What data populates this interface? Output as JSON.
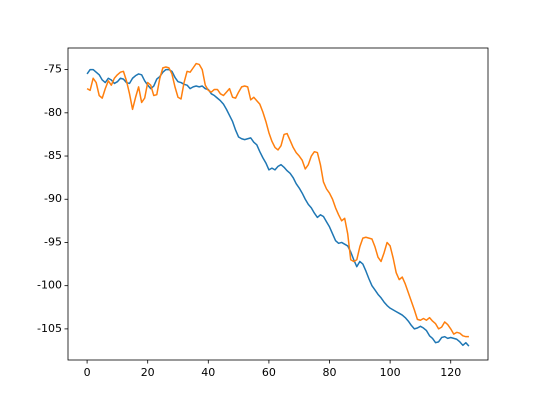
{
  "chart_data": {
    "type": "line",
    "x": [
      0,
      1,
      2,
      3,
      4,
      5,
      6,
      7,
      8,
      9,
      10,
      11,
      12,
      13,
      14,
      15,
      16,
      17,
      18,
      19,
      20,
      21,
      22,
      23,
      24,
      25,
      26,
      27,
      28,
      29,
      30,
      31,
      32,
      33,
      34,
      35,
      36,
      37,
      38,
      39,
      40,
      41,
      42,
      43,
      44,
      45,
      46,
      47,
      48,
      49,
      50,
      51,
      52,
      53,
      54,
      55,
      56,
      57,
      58,
      59,
      60,
      61,
      62,
      63,
      64,
      65,
      66,
      67,
      68,
      69,
      70,
      71,
      72,
      73,
      74,
      75,
      76,
      77,
      78,
      79,
      80,
      81,
      82,
      83,
      84,
      85,
      86,
      87,
      88,
      89,
      90,
      91,
      92,
      93,
      94,
      95,
      96,
      97,
      98,
      99,
      100,
      101,
      102,
      103,
      104,
      105,
      106,
      107,
      108,
      109,
      110,
      111,
      112,
      113,
      114,
      115,
      116,
      117,
      118,
      119,
      120,
      121,
      122,
      123,
      124,
      125,
      126
    ],
    "series": [
      {
        "color": "#1f77b4",
        "values": [
          -75.5,
          -75.0,
          -75.0,
          -75.3,
          -75.6,
          -76.2,
          -76.5,
          -76.0,
          -76.2,
          -76.6,
          -76.4,
          -76.0,
          -76.1,
          -76.5,
          -76.6,
          -76.0,
          -75.7,
          -75.5,
          -75.6,
          -76.3,
          -76.8,
          -77.2,
          -76.9,
          -76.1,
          -75.8,
          -75.3,
          -75.0,
          -75.0,
          -75.2,
          -75.9,
          -76.4,
          -76.5,
          -76.7,
          -76.8,
          -77.2,
          -77.0,
          -76.9,
          -77.0,
          -76.9,
          -77.2,
          -77.3,
          -77.8,
          -78.0,
          -78.3,
          -78.6,
          -79.0,
          -79.6,
          -80.3,
          -81.0,
          -82.0,
          -82.8,
          -83.0,
          -83.1,
          -83.0,
          -82.9,
          -83.4,
          -83.7,
          -84.5,
          -85.2,
          -85.8,
          -86.6,
          -86.4,
          -86.6,
          -86.2,
          -86.0,
          -86.3,
          -86.7,
          -87.0,
          -87.5,
          -88.2,
          -88.7,
          -89.3,
          -90.0,
          -90.6,
          -91.0,
          -91.6,
          -92.1,
          -91.8,
          -92.0,
          -92.6,
          -93.2,
          -94.0,
          -94.8,
          -95.1,
          -95.0,
          -95.2,
          -95.4,
          -96.1,
          -97.0,
          -97.8,
          -97.2,
          -97.5,
          -98.3,
          -99.2,
          -100.0,
          -100.5,
          -101.0,
          -101.4,
          -101.9,
          -102.3,
          -102.6,
          -102.8,
          -103.0,
          -103.2,
          -103.4,
          -103.7,
          -104.1,
          -104.6,
          -105.0,
          -104.9,
          -104.7,
          -104.9,
          -105.2,
          -105.8,
          -106.1,
          -106.6,
          -106.5,
          -106.0,
          -105.9,
          -106.1,
          -106.0,
          -106.1,
          -106.2,
          -106.5,
          -106.9,
          -106.6,
          -107.0
        ]
      },
      {
        "color": "#ff7f0e",
        "values": [
          -77.2,
          -77.4,
          -76.0,
          -76.5,
          -78.0,
          -78.3,
          -77.2,
          -76.3,
          -76.8,
          -76.0,
          -75.6,
          -75.3,
          -75.2,
          -76.3,
          -77.8,
          -79.6,
          -78.2,
          -77.0,
          -78.8,
          -78.3,
          -76.5,
          -76.8,
          -78.0,
          -77.9,
          -76.0,
          -74.8,
          -74.7,
          -74.8,
          -75.5,
          -77.0,
          -78.2,
          -78.4,
          -76.5,
          -75.2,
          -75.3,
          -74.8,
          -74.3,
          -74.4,
          -75.0,
          -76.8,
          -77.4,
          -77.6,
          -77.3,
          -77.3,
          -77.8,
          -78.0,
          -77.6,
          -77.2,
          -78.2,
          -78.3,
          -77.6,
          -77.0,
          -76.9,
          -77.0,
          -78.5,
          -78.2,
          -78.6,
          -79.0,
          -79.9,
          -81.0,
          -82.3,
          -83.3,
          -84.0,
          -84.3,
          -83.8,
          -82.5,
          -82.4,
          -83.2,
          -84.0,
          -84.6,
          -85.0,
          -85.5,
          -86.5,
          -86.0,
          -85.0,
          -84.5,
          -84.6,
          -86.0,
          -88.0,
          -88.8,
          -89.3,
          -90.0,
          -91.0,
          -91.8,
          -92.5,
          -92.2,
          -94.0,
          -97.0,
          -97.2,
          -97.0,
          -95.5,
          -94.5,
          -94.4,
          -94.5,
          -94.6,
          -95.5,
          -96.7,
          -97.2,
          -96.2,
          -95.0,
          -95.4,
          -96.8,
          -98.5,
          -99.3,
          -99.0,
          -99.8,
          -100.8,
          -101.8,
          -102.8,
          -103.9,
          -104.0,
          -103.8,
          -104.0,
          -103.7,
          -104.1,
          -104.4,
          -105.0,
          -104.8,
          -104.2,
          -104.5,
          -105.0,
          -105.6,
          -105.4,
          -105.5,
          -105.8,
          -105.9,
          -105.9
        ]
      }
    ],
    "xlim": [
      -6.3,
      132.3
    ],
    "xticks": [
      0,
      20,
      40,
      60,
      80,
      100,
      120
    ],
    "ylim": [
      -108.6,
      -72.5
    ],
    "yticks": [
      -105,
      -100,
      -95,
      -90,
      -85,
      -80,
      -75
    ]
  }
}
